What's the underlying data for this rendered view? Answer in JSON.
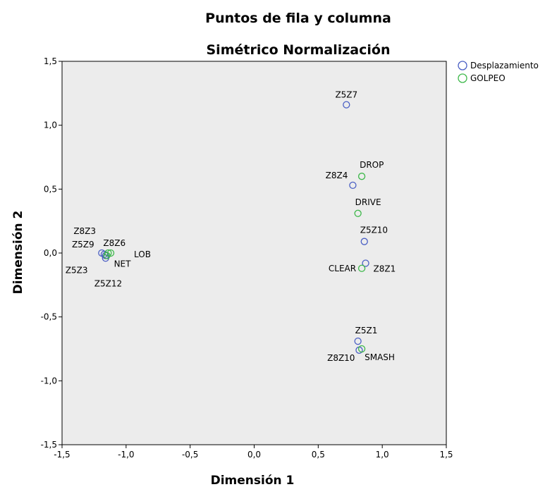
{
  "chart_data": {
    "type": "scatter",
    "title": "Puntos de fila y columna",
    "subtitle": "Simétrico Normalización",
    "xlabel": "Dimensión 1",
    "ylabel": "Dimensión 2",
    "xlim": [
      -1.5,
      1.5
    ],
    "ylim": [
      -1.5,
      1.5
    ],
    "xticks": [
      -1.5,
      -1.0,
      -0.5,
      0.0,
      0.5,
      1.0,
      1.5
    ],
    "yticks": [
      -1.5,
      -1.0,
      -0.5,
      0.0,
      0.5,
      1.0,
      1.5
    ],
    "xtick_labels": [
      "-1,5",
      "-1,0",
      "-0,5",
      "0,0",
      "0,5",
      "1,0",
      "1,5"
    ],
    "ytick_labels": [
      "-1,5",
      "-1,0",
      "-0,5",
      "0,0",
      "0,5",
      "1,0",
      "1,5"
    ],
    "grid": false,
    "legend_position": "top-right",
    "plot_background": "#ececec",
    "series": [
      {
        "name": "Desplazamiento",
        "color": "#4a5fc4",
        "points": [
          {
            "label": "Z5Z7",
            "x": 0.72,
            "y": 1.16
          },
          {
            "label": "Z8Z4",
            "x": 0.77,
            "y": 0.53
          },
          {
            "label": "Z5Z10",
            "x": 0.86,
            "y": 0.09
          },
          {
            "label": "Z8Z1",
            "x": 0.87,
            "y": -0.08
          },
          {
            "label": "Z5Z1",
            "x": 0.81,
            "y": -0.69
          },
          {
            "label": "Z8Z10",
            "x": 0.82,
            "y": -0.76
          },
          {
            "label": "Z8Z3",
            "x": -1.19,
            "y": 0.0
          },
          {
            "label": "Z5Z9",
            "x": -1.17,
            "y": -0.01
          },
          {
            "label": "Z5Z3",
            "x": -1.16,
            "y": -0.02
          },
          {
            "label": "Z5Z12",
            "x": -1.16,
            "y": -0.04
          }
        ]
      },
      {
        "name": "GOLPEO",
        "color": "#3db84a",
        "points": [
          {
            "label": "DROP",
            "x": 0.84,
            "y": 0.6
          },
          {
            "label": "DRIVE",
            "x": 0.81,
            "y": 0.31
          },
          {
            "label": "CLEAR",
            "x": 0.84,
            "y": -0.12
          },
          {
            "label": "SMASH",
            "x": 0.84,
            "y": -0.75
          },
          {
            "label": "Z8Z6",
            "x": -1.14,
            "y": 0.0
          },
          {
            "label": "LOB",
            "x": -1.12,
            "y": 0.0
          },
          {
            "label": "NET",
            "x": -1.15,
            "y": -0.02
          }
        ]
      }
    ]
  }
}
